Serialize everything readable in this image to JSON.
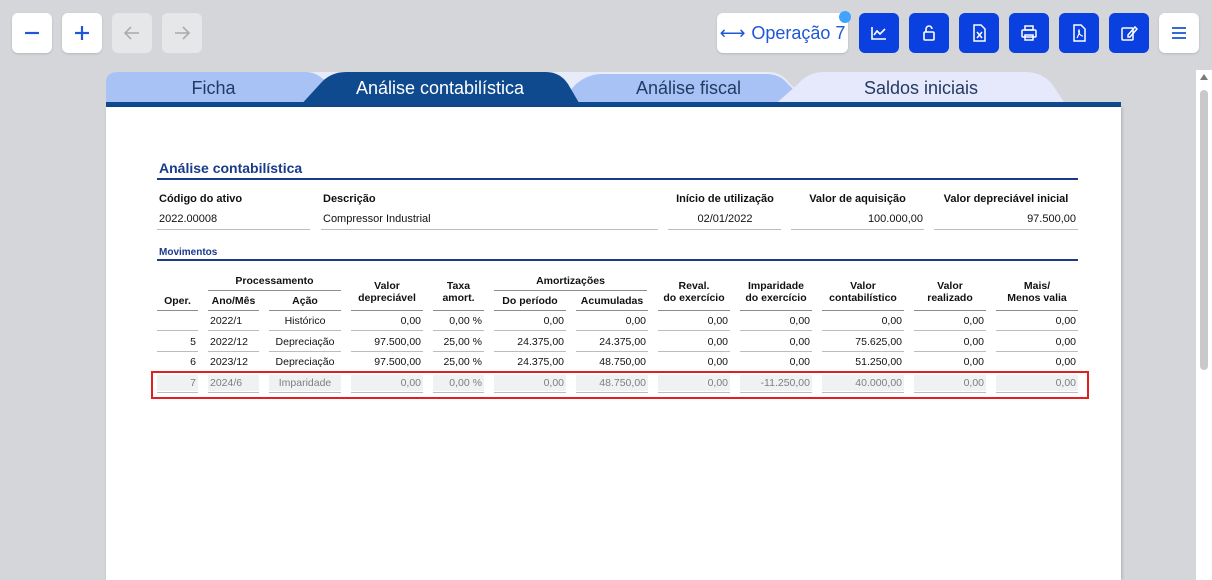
{
  "toolbar": {
    "operation_label": "Operação 7",
    "icons": [
      "minus-icon",
      "plus-icon",
      "arrow-left-icon",
      "arrow-right-icon",
      "arrows-horizontal-icon",
      "chart-icon",
      "unlock-icon",
      "excel-icon",
      "print-icon",
      "pdf-icon",
      "edit-icon",
      "menu-icon"
    ]
  },
  "tabs": [
    {
      "label": "Ficha"
    },
    {
      "label": "Análise contabilística"
    },
    {
      "label": "Análise fiscal"
    },
    {
      "label": "Saldos iniciais"
    }
  ],
  "section": {
    "title": "Análise contabilística",
    "fields": [
      {
        "label": "Código do ativo",
        "value": "2022.00008"
      },
      {
        "label": "Descrição",
        "value": "Compressor Industrial"
      },
      {
        "label": "Início de utilização",
        "value": "02/01/2022"
      },
      {
        "label": "Valor de aquisição",
        "value": "100.000,00"
      },
      {
        "label": "Valor depreciável inicial",
        "value": "97.500,00"
      }
    ]
  },
  "movimentos": {
    "title": "Movimentos",
    "group_processamento": "Processamento",
    "group_amortizacoes": "Amortizações",
    "headers": {
      "oper": "Oper.",
      "ano_mes": "Ano/Mês",
      "acao": "Ação",
      "valor_depreciavel_1": "Valor",
      "valor_depreciavel_2": "depreciável",
      "taxa_1": "Taxa",
      "taxa_2": "amort.",
      "do_periodo": "Do período",
      "acumuladas": "Acumuladas",
      "reval_1": "Reval.",
      "reval_2": "do exercício",
      "imparidade_1": "Imparidade",
      "imparidade_2": "do exercício",
      "valor_contab_1": "Valor",
      "valor_contab_2": "contabilístico",
      "valor_real_1": "Valor",
      "valor_real_2": "realizado",
      "mais_1": "Mais/",
      "mais_2": "Menos valia"
    },
    "rows": [
      {
        "oper": "",
        "ano_mes": "2022/1",
        "acao": "Histórico",
        "valor_depreciavel": "0,00",
        "taxa": "0,00 %",
        "do_periodo": "0,00",
        "acumuladas": "0,00",
        "reval": "0,00",
        "imparidade": "0,00",
        "valor_contab": "0,00",
        "valor_real": "0,00",
        "mais": "0,00"
      },
      {
        "oper": "5",
        "ano_mes": "2022/12",
        "acao": "Depreciação",
        "valor_depreciavel": "97.500,00",
        "taxa": "25,00 %",
        "do_periodo": "24.375,00",
        "acumuladas": "24.375,00",
        "reval": "0,00",
        "imparidade": "0,00",
        "valor_contab": "75.625,00",
        "valor_real": "0,00",
        "mais": "0,00"
      },
      {
        "oper": "6",
        "ano_mes": "2023/12",
        "acao": "Depreciação",
        "valor_depreciavel": "97.500,00",
        "taxa": "25,00 %",
        "do_periodo": "24.375,00",
        "acumuladas": "48.750,00",
        "reval": "0,00",
        "imparidade": "0,00",
        "valor_contab": "51.250,00",
        "valor_real": "0,00",
        "mais": "0,00"
      },
      {
        "oper": "7",
        "ano_mes": "2024/6",
        "acao": "Imparidade",
        "valor_depreciavel": "0,00",
        "taxa": "0,00 %",
        "do_periodo": "0,00",
        "acumuladas": "48.750,00",
        "reval": "0,00",
        "imparidade": "-11.250,00",
        "valor_contab": "40.000,00",
        "valor_real": "0,00",
        "mais": "0,00"
      }
    ]
  },
  "colors": {
    "primary_blue": "#0a3fe0",
    "tab_active": "#0f4a8f",
    "title_blue": "#1a3a8a",
    "highlight_red": "#e02020"
  }
}
